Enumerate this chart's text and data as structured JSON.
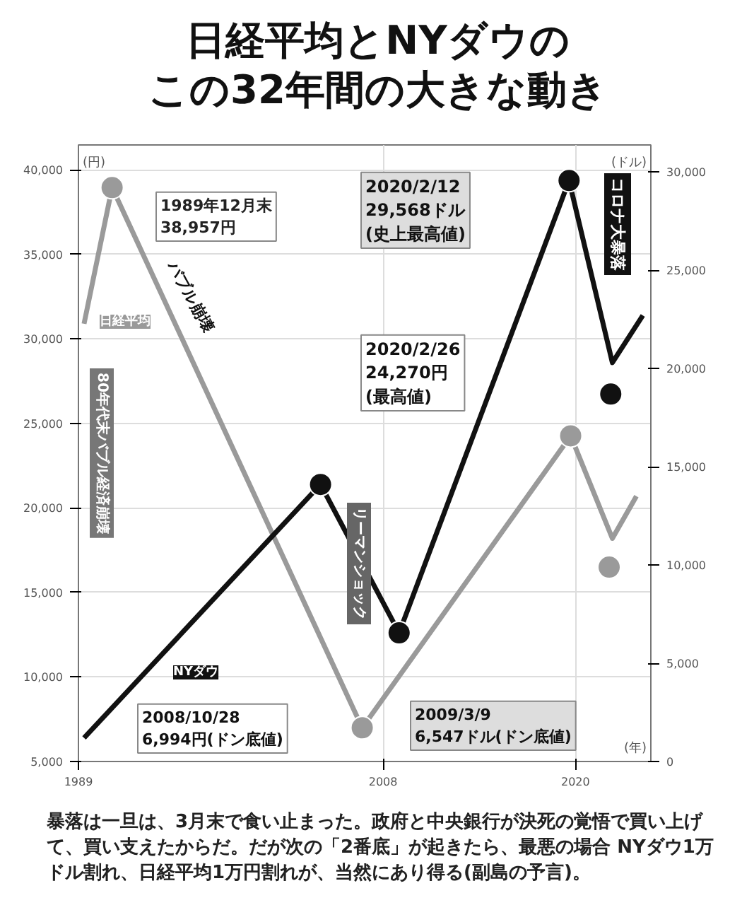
{
  "chart_data": {
    "type": "line",
    "title": "日経平均とNYダウの",
    "subtitle": "この32年間の大きな動き",
    "xlabel": "(年)",
    "ylabel": "(円)",
    "y2label": "(ドル)",
    "xlim": [
      1989,
      2024.7
    ],
    "xticks": [
      1989,
      2008,
      2020
    ],
    "ylim": [
      5000,
      41480
    ],
    "yticks": [
      {
        "value": 5000,
        "label": "5,000"
      },
      {
        "value": 10000,
        "label": "10,000"
      },
      {
        "value": 15000,
        "label": "15,000"
      },
      {
        "value": 20000,
        "label": "20,000"
      },
      {
        "value": 25000,
        "label": "25,000"
      },
      {
        "value": 30000,
        "label": "30,000"
      },
      {
        "value": 35000,
        "label": "35,000"
      },
      {
        "value": 40000,
        "label": "40,000"
      }
    ],
    "y2lim": [
      0,
      31380
    ],
    "y2ticks": [
      0,
      {
        "value": 5000,
        "label": "5,000"
      },
      {
        "value": 10000,
        "label": "10,000"
      },
      {
        "value": 15000,
        "label": "15,000"
      },
      {
        "value": 20000,
        "label": "20,000"
      },
      {
        "value": 25000,
        "label": "25,000"
      },
      {
        "value": 30000,
        "label": "30,000"
      }
    ],
    "grid": true,
    "line_style": "solid",
    "series": [
      {
        "name": "日経平均",
        "color": "#9a9a9a",
        "marker": "none",
        "x": [
          1989.35,
          1991.1,
          2006.7,
          2019.7,
          2022.3,
          2023.8
        ],
        "values": [
          30900,
          38957,
          6994,
          24270,
          18200,
          20700
        ]
      },
      {
        "type": "scatter",
        "color": "#9a9a9a",
        "marker": "circle",
        "x": [
          1991.1,
          2006.7,
          2019.7,
          2022.1
        ],
        "values": [
          38957,
          6994,
          24270,
          16500
        ]
      },
      {
        "name": "NYダウ",
        "axis": "y2",
        "color": "#111111",
        "marker": "none",
        "x": [
          1989.35,
          2004.1,
          2009.0,
          2019.6,
          2022.3,
          2024.2
        ],
        "values": [
          1200,
          14100,
          6547,
          29568,
          20300,
          22700
        ]
      },
      {
        "type": "scatter",
        "axis": "y2",
        "color": "#111111",
        "marker": "circle",
        "x": [
          2004.1,
          2009.0,
          2019.6,
          2022.2
        ],
        "values": [
          14100,
          6547,
          29568,
          18700
        ]
      }
    ],
    "annotations": [
      "1989年12月末\n38,957円",
      "2020/2/12\n29,568ドル\n(史上最高値)",
      "2020/2/26\n24,270円\n(最高値)",
      "2008/10/28\n6,994円(ドン底値)",
      "2009/3/9\n6,547ドル(ドン底値)",
      "バブル崩壊",
      "80年代末バブル経済崩壊",
      "リーマンショック",
      "コロナ大暴落",
      "暴落は一旦は、3月末で食い止まった。政府と中央銀行が決死の覚悟で買い上げて、買い支えたからだ。だが次の「2番底」が起きたら、最悪の場合 NYダウ1万ドル割れ、日経平均1万円割れが、当然にあり得る(副島の予言)。"
    ]
  }
}
